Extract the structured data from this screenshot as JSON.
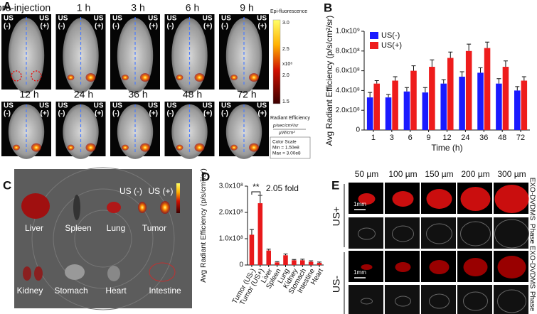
{
  "panel_labels": [
    "A",
    "B",
    "C",
    "D",
    "E"
  ],
  "panel_a": {
    "timepoints": [
      "pre-injection",
      "1 h",
      "3 h",
      "6 h",
      "9 h",
      "12 h",
      "24 h",
      "36 h",
      "48 h",
      "72 h"
    ],
    "us": "US",
    "minus": "(-)",
    "plus": "(+)",
    "colorbar": {
      "title": "Epi-fluorescence",
      "ticks": [
        "3.0",
        "2.5",
        "2.0",
        "1.5"
      ],
      "multiplier": "x10⁸",
      "unit_title": "Radiant Efficiency",
      "unit_top": "p/sec/cm²/sr",
      "unit_bottom": "µW/cm²",
      "scale_title": "Color Scale",
      "scale_min": "Min = 1.50e8",
      "scale_max": "Max = 3.00e8"
    }
  },
  "panel_c": {
    "organs": [
      "Liver",
      "Spleen",
      "Lung",
      "Tumor",
      "Kidney",
      "Stomach",
      "Heart",
      "Intestine"
    ],
    "us_minus": "US (-)",
    "us_plus": "US (+)"
  },
  "panel_e": {
    "thicknesses": [
      "50 µm",
      "100 µm",
      "150 µm",
      "200 µm",
      "300 µm"
    ],
    "rows": [
      "EXO-DVDMS",
      "Phase",
      "EXO-DVDMS",
      "Phase"
    ],
    "groups": [
      "US+",
      "US-"
    ],
    "scale_bar": "1mm"
  },
  "chart_data": [
    {
      "type": "bar",
      "ylabel": "Avg Radiant Efficiency (p/s/cm²/sr)",
      "xlabel": "Time (h)",
      "categories": [
        "1",
        "3",
        "6",
        "9",
        "12",
        "24",
        "36",
        "48",
        "72"
      ],
      "series": [
        {
          "name": "US(-)",
          "color": "#1a1aff",
          "values": [
            330000000,
            330000000,
            390000000,
            380000000,
            470000000,
            540000000,
            580000000,
            470000000,
            400000000
          ],
          "errors": [
            50000000,
            30000000,
            40000000,
            50000000,
            40000000,
            50000000,
            50000000,
            50000000,
            40000000
          ]
        },
        {
          "name": "US(+)",
          "color": "#ee1c1c",
          "values": [
            470000000,
            500000000,
            600000000,
            640000000,
            730000000,
            800000000,
            830000000,
            640000000,
            500000000
          ],
          "errors": [
            30000000,
            40000000,
            50000000,
            70000000,
            60000000,
            70000000,
            60000000,
            60000000,
            40000000
          ]
        }
      ],
      "ylim": [
        0,
        1000000000
      ],
      "yticks": [
        0,
        {
          "value": 200000000,
          "label": "2.0x10⁸"
        },
        {
          "value": 400000000,
          "label": "4.0x10⁸"
        },
        {
          "value": 600000000,
          "label": "6.0x10⁸"
        },
        {
          "value": 800000000,
          "label": "8.0x10⁸"
        },
        {
          "value": 1000000000,
          "label": "1.0x10⁹"
        }
      ],
      "legend": "upper-left"
    },
    {
      "type": "bar",
      "ylabel": "Avg Radiant Efficiency (p/s/cm²/sr)",
      "color": "#e8191b",
      "categories": [
        "Tumor (US-)",
        "Tumor (US+)",
        "Liver",
        "Spleen",
        "Lung",
        "Kidney",
        "Stomach",
        "Intestine",
        "Heart"
      ],
      "values": [
        115000000,
        235000000,
        55000000,
        10000000,
        37000000,
        18000000,
        18000000,
        12000000,
        8000000
      ],
      "errors": [
        20000000,
        30000000,
        5000000,
        3000000,
        5000000,
        3000000,
        4000000,
        4000000,
        3000000
      ],
      "ylim": [
        0,
        300000000
      ],
      "yticks": [
        0,
        {
          "value": 100000000,
          "label": "1.0x10⁸"
        },
        {
          "value": 200000000,
          "label": "2.0x10⁸"
        },
        {
          "value": 300000000,
          "label": "3.0x10⁸"
        }
      ],
      "annotations": [
        "**",
        "2.05 fold"
      ]
    }
  ]
}
